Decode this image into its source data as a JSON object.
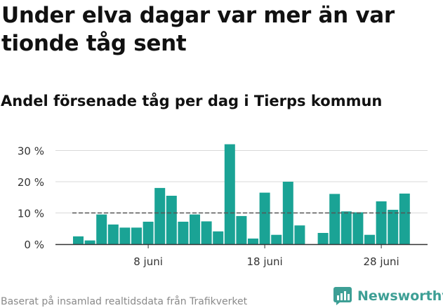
{
  "title": "Under elva dagar var mer än var tionde tåg sent",
  "subtitle": "Andel försenade tåg per dag i Tierps kommun",
  "source": "Baserat på insamlad realtidsdata från Trafikverket",
  "logo": {
    "text": "Newsworthy",
    "icon": "newsworthy-bar-chart-icon"
  },
  "colors": {
    "bar": "#1aa395",
    "reference_line": "#555555",
    "grid": "#d9d9d9",
    "axis": "#333333",
    "logo": "#3d9f95"
  },
  "chart_data": {
    "type": "bar",
    "x": [
      "2 juni",
      "3 juni",
      "4 juni",
      "5 juni",
      "6 juni",
      "7 juni",
      "8 juni",
      "9 juni",
      "10 juni",
      "11 juni",
      "12 juni",
      "13 juni",
      "14 juni",
      "15 juni",
      "16 juni",
      "17 juni",
      "18 juni",
      "19 juni",
      "20 juni",
      "21 juni",
      "22 juni",
      "23 juni",
      "24 juni",
      "25 juni",
      "26 juni",
      "27 juni",
      "28 juni",
      "29 juni"
    ],
    "values": [
      2.5,
      1.2,
      9.5,
      6.3,
      5.3,
      5.3,
      7.2,
      18,
      15.5,
      7.2,
      9.5,
      7.3,
      4.1,
      32,
      9,
      1.8,
      16.5,
      3,
      20,
      6,
      null,
      3.6,
      16.1,
      10.5,
      10.2,
      3,
      13.7,
      11
    ],
    "extra_last_value": 16.2,
    "reference_line": 10,
    "ylim": [
      0,
      32
    ],
    "yticks": [
      0,
      10,
      20,
      30
    ],
    "ytick_labels": [
      "0 %",
      "10 %",
      "20 %",
      "30 %"
    ],
    "xtick_labels": [
      {
        "label": "8 juni",
        "at": "8 juni"
      },
      {
        "label": "18 juni",
        "at": "18 juni"
      },
      {
        "label": "28 juni",
        "at": "28 juni"
      }
    ],
    "grid": true,
    "xlabel": "",
    "ylabel": ""
  }
}
